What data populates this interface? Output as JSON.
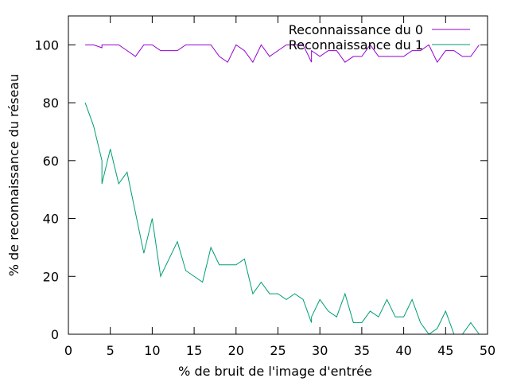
{
  "chart_data": {
    "type": "line",
    "title": "",
    "xlabel": "% de bruit de l'image d'entrée",
    "ylabel": "% de reconnaissance du réseau",
    "xlim": [
      0,
      50
    ],
    "ylim": [
      0,
      110
    ],
    "xticks": [
      0,
      5,
      10,
      15,
      20,
      25,
      30,
      35,
      40,
      45,
      50
    ],
    "yticks": [
      0,
      20,
      40,
      60,
      80,
      100
    ],
    "grid": false,
    "legend_position": "top-right",
    "series": [
      {
        "name": "Reconnaissance du 0",
        "color": "#9400d3",
        "x": [
          2,
          3,
          4,
          4,
          5,
          6,
          7,
          8,
          9,
          10,
          11,
          12,
          13,
          14,
          15,
          16,
          17,
          18,
          19,
          20,
          21,
          22,
          23,
          24,
          25,
          26,
          27,
          28,
          29,
          29,
          30,
          31,
          32,
          33,
          34,
          35,
          36,
          37,
          38,
          39,
          40,
          41,
          42,
          43,
          44,
          45,
          46,
          47,
          48,
          49
        ],
        "y": [
          100,
          100,
          99,
          100,
          100,
          100,
          98,
          96,
          100,
          100,
          98,
          98,
          98,
          100,
          100,
          100,
          100,
          96,
          94,
          100,
          98,
          94,
          100,
          96,
          98,
          100,
          100,
          100,
          94,
          98,
          96,
          98,
          98,
          94,
          96,
          96,
          100,
          96,
          96,
          96,
          96,
          98,
          98,
          100,
          94,
          98,
          98,
          96,
          96,
          100
        ]
      },
      {
        "name": "Reconnaissance du 1",
        "color": "#009e73",
        "x": [
          2,
          3,
          4,
          4,
          5,
          6,
          7,
          8,
          9,
          10,
          11,
          12,
          13,
          14,
          15,
          16,
          17,
          18,
          19,
          20,
          21,
          22,
          23,
          24,
          25,
          26,
          27,
          28,
          29,
          29,
          30,
          31,
          32,
          33,
          34,
          35,
          36,
          37,
          38,
          39,
          40,
          41,
          42,
          43,
          44,
          45,
          46,
          47,
          48,
          49
        ],
        "y": [
          80,
          72,
          60,
          52,
          64,
          52,
          56,
          42,
          28,
          40,
          20,
          26,
          32,
          22,
          20,
          18,
          30,
          24,
          24,
          24,
          26,
          14,
          18,
          14,
          14,
          12,
          14,
          12,
          4,
          6,
          12,
          8,
          6,
          14,
          4,
          4,
          8,
          6,
          12,
          6,
          6,
          12,
          4,
          0,
          2,
          8,
          0,
          0,
          4,
          0
        ]
      }
    ]
  }
}
